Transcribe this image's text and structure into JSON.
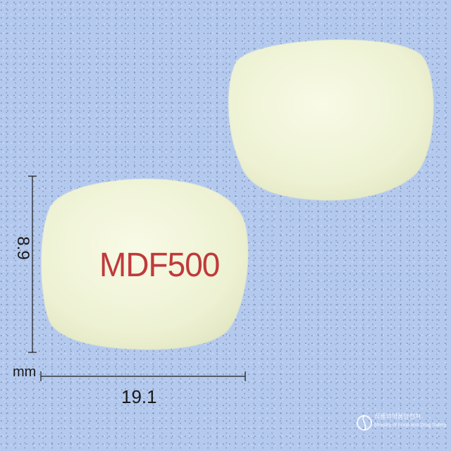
{
  "imprint_front": "MDF500",
  "dimensions": {
    "height_label": "8.9",
    "width_label": "19.1",
    "unit": "mm"
  },
  "watermark": {
    "korean": "식품의약품안전처",
    "english": "Ministry of Food and Drug Safety"
  },
  "colors": {
    "background": "#b4c9ee",
    "tablet": "#f3f6dc",
    "imprint": "#c0393b"
  }
}
